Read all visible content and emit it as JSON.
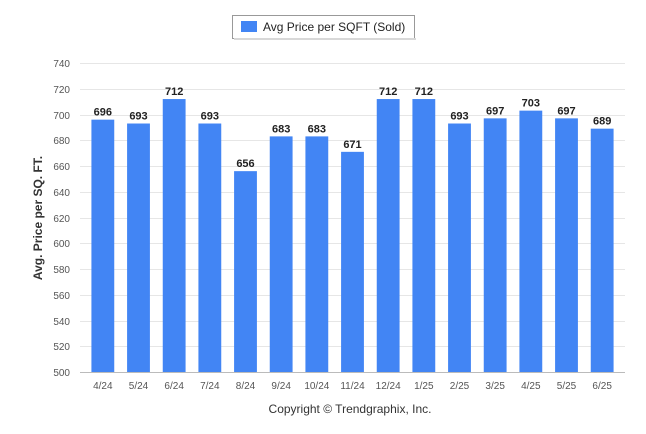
{
  "legend": {
    "label": "Avg Price per SQFT (Sold)"
  },
  "footer": {
    "copyright": "Copyright © Trendgraphix, Inc."
  },
  "colors": {
    "bar": "#4285f4",
    "grid": "#e6e6e6",
    "axis": "#bbbbbb"
  },
  "chart_data": {
    "type": "bar",
    "title": "",
    "xlabel": "",
    "ylabel": "Avg. Price per SQ. FT.",
    "ylim": [
      500,
      740
    ],
    "yticks": [
      500,
      520,
      540,
      560,
      580,
      600,
      620,
      640,
      660,
      680,
      700,
      720,
      740
    ],
    "grid": true,
    "legend_position": "top-center",
    "categories": [
      "4/24",
      "5/24",
      "6/24",
      "7/24",
      "8/24",
      "9/24",
      "10/24",
      "11/24",
      "12/24",
      "1/25",
      "2/25",
      "3/25",
      "4/25",
      "5/25",
      "6/25"
    ],
    "series": [
      {
        "name": "Avg Price per SQFT (Sold)",
        "values": [
          696,
          693,
          712,
          693,
          656,
          683,
          683,
          671,
          712,
          712,
          693,
          697,
          703,
          697,
          689
        ]
      }
    ]
  }
}
